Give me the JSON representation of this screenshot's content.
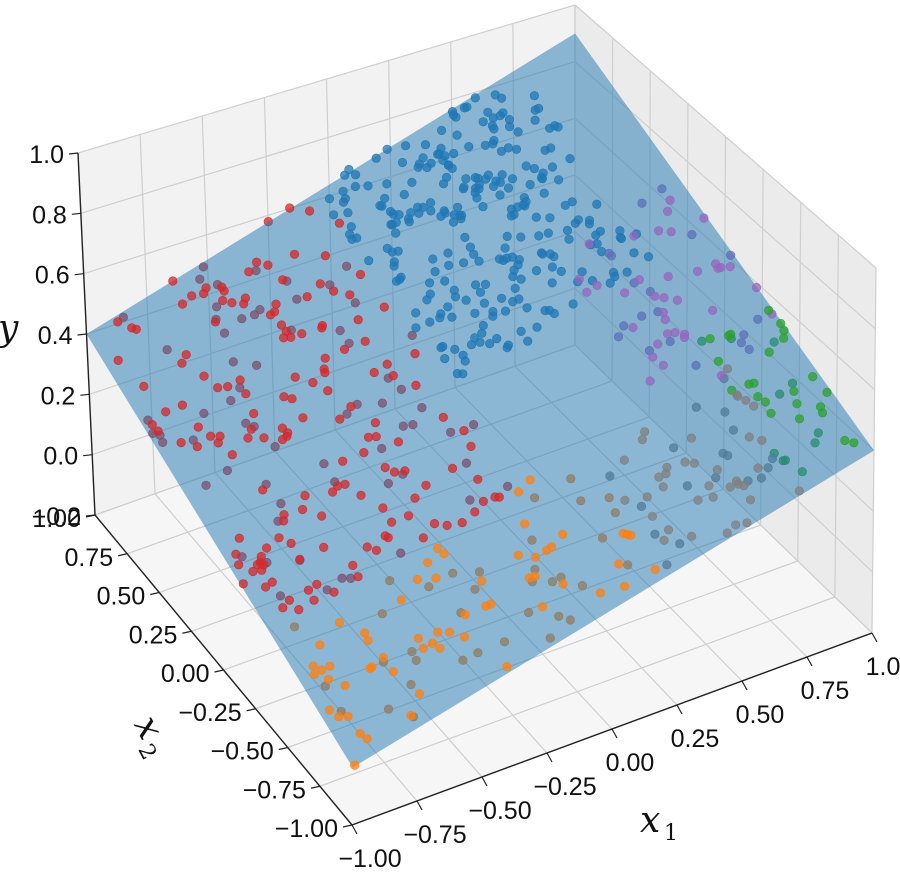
{
  "chart_data": {
    "type": "scatter",
    "title": "",
    "xlabel": "x",
    "xlabel_sub": "1",
    "ylabel": "x",
    "ylabel_sub": "2",
    "zlabel": "y",
    "xlim": [
      -1.0,
      1.0
    ],
    "ylim": [
      -1.0,
      1.0
    ],
    "zlim": [
      -0.2,
      1.0
    ],
    "x_ticks": [
      "−1.00",
      "−0.75",
      "−0.50",
      "−0.25",
      "0.00",
      "0.25",
      "0.50",
      "0.75",
      "1.00"
    ],
    "y_ticks": [
      "−1.00",
      "−0.75",
      "−0.50",
      "−0.25",
      "0.00",
      "0.25",
      "0.50",
      "0.75",
      "1.00"
    ],
    "z_ticks": [
      "−0.2",
      "0.0",
      "0.2",
      "0.4",
      "0.6",
      "0.8",
      "1.0"
    ],
    "grid": true,
    "surface": {
      "type": "surface",
      "color": "#1f77b4",
      "opacity": 0.5,
      "corners": [
        {
          "x1": -1.0,
          "x2": 1.0,
          "y": 0.4
        },
        {
          "x1": 1.0,
          "x2": 1.0,
          "y": 0.9
        },
        {
          "x1": 1.0,
          "x2": -1.0,
          "y": 0.4
        },
        {
          "x1": -1.0,
          "x2": -1.0,
          "y": -0.05
        }
      ]
    },
    "series": [
      {
        "color": "#d62728",
        "region": "x1 < 0, x2 > 0 (upper-left)",
        "count": 220
      },
      {
        "color": "#1f77b4",
        "region": "x1 > 0, x2 > 0",
        "count": 260
      },
      {
        "color": "#9467bd",
        "region": "x1 > 0.5, x2 around 0",
        "count": 55
      },
      {
        "color": "#2ca02c",
        "region": "x1 > 0.5, x2 < -0.5",
        "count": 35
      },
      {
        "color": "#ff7f0e",
        "region": "x2 < -0.5, x1 < 0",
        "count": 95
      },
      {
        "color": "#7f7f7f",
        "region": "x2 < -0.5, x1 > 0",
        "count": 55
      }
    ]
  }
}
